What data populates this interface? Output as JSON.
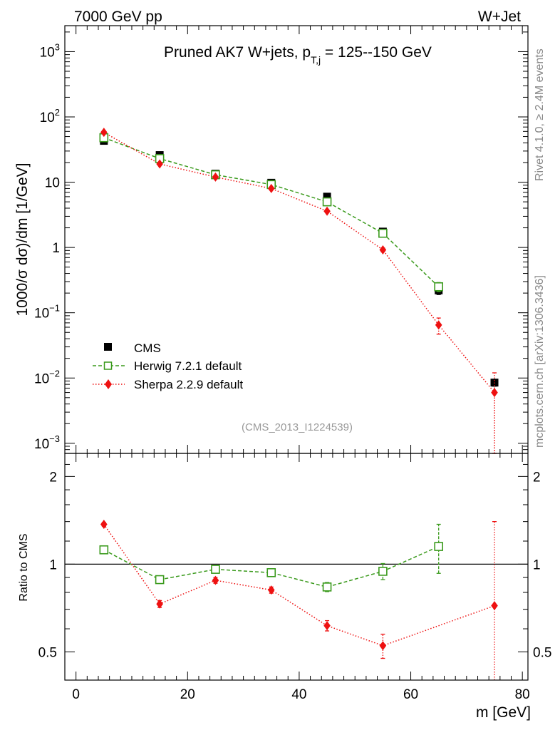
{
  "header": {
    "left": "7000 GeV pp",
    "right": "W+Jet"
  },
  "side_labels": {
    "rivet": "Rivet 4.1.0, ≥ 2.4M events",
    "mcplots": "mcplots.cern.ch [arXiv:1306.3436]"
  },
  "chart_data": [
    {
      "panel": "main",
      "type": "scatter",
      "title": {
        "main": "Pruned AK7 W+jets, p",
        "sub": "T,j",
        "tail": " = 125--150 GeV"
      },
      "watermark": "(CMS_2013_I1224539)",
      "xlabel": "m [GeV]",
      "ylabel": "1000/σ   dσ)/dm [1/GeV]",
      "yscale": "log",
      "xlim": [
        -2,
        81
      ],
      "ylim": [
        0.0007,
        2500
      ],
      "x_ticks": [
        0,
        20,
        40,
        60,
        80
      ],
      "y_ticks": [
        {
          "v": 1000,
          "base": "10",
          "exp": "3"
        },
        {
          "v": 100,
          "base": "10",
          "exp": "2"
        },
        {
          "v": 10,
          "base": "10",
          "exp": ""
        },
        {
          "v": 1,
          "base": "1",
          "exp": ""
        },
        {
          "v": 0.1,
          "base": "10",
          "exp": "−1"
        },
        {
          "v": 0.01,
          "base": "10",
          "exp": "−2"
        },
        {
          "v": 0.001,
          "base": "10",
          "exp": "−3"
        }
      ],
      "legend_position": "bottom-left",
      "series": [
        {
          "name": "CMS",
          "key": "cms",
          "color": "#000000",
          "marker": "filled-square",
          "x": [
            5,
            15,
            25,
            35,
            45,
            55,
            65,
            75
          ],
          "y": [
            43,
            26,
            13.5,
            9.8,
            6.0,
            1.75,
            0.22,
            0.0085
          ],
          "err": [
            3,
            1.5,
            0.8,
            0.6,
            0.4,
            0.15,
            0.03,
            0.001
          ]
        },
        {
          "name": "Herwig 7.2.1 default",
          "key": "herwig",
          "color": "#3a9a1c",
          "marker": "open-square",
          "line": "dashed",
          "x": [
            5,
            15,
            25,
            35,
            45,
            55,
            65
          ],
          "y": [
            48,
            23,
            13,
            9.2,
            5.0,
            1.65,
            0.25
          ],
          "err": [
            1.5,
            0.8,
            0.4,
            0.3,
            0.2,
            0.08,
            0.04
          ]
        },
        {
          "name": "Sherpa 2.2.9 default",
          "key": "sherpa",
          "color": "#ee1111",
          "marker": "filled-diamond",
          "line": "dotted",
          "x": [
            5,
            15,
            25,
            35,
            45,
            55,
            65,
            75
          ],
          "y": [
            58,
            19,
            12,
            8.0,
            3.6,
            0.92,
            0.065,
            0.006
          ],
          "err": [
            1.5,
            0.6,
            0.4,
            0.3,
            0.15,
            0.06,
            0.018,
            0.006
          ]
        }
      ]
    },
    {
      "panel": "ratio",
      "type": "scatter",
      "ylabel": "Ratio to CMS",
      "xlabel": "m [GeV]",
      "yscale": "log",
      "xlim": [
        -2,
        81
      ],
      "ylim": [
        0.4,
        2.4
      ],
      "y_ticks": [
        {
          "v": 2,
          "label": "2"
        },
        {
          "v": 1,
          "label": "1"
        },
        {
          "v": 0.5,
          "label": "0.5"
        }
      ],
      "reference_line": 1,
      "series": [
        {
          "name": "Herwig 7.2.1 default",
          "key": "herwig",
          "x": [
            5,
            15,
            25,
            35,
            45,
            55,
            65
          ],
          "y": [
            1.12,
            0.885,
            0.96,
            0.935,
            0.835,
            0.945,
            1.15
          ],
          "err": [
            0.02,
            0.02,
            0.02,
            0.02,
            0.03,
            0.06,
            0.22
          ]
        },
        {
          "name": "Sherpa 2.2.9 default",
          "key": "sherpa",
          "x": [
            5,
            15,
            25,
            35,
            45,
            55,
            75
          ],
          "y": [
            1.37,
            0.73,
            0.88,
            0.815,
            0.615,
            0.525,
            0.72
          ],
          "err": [
            0.02,
            0.02,
            0.02,
            0.02,
            0.025,
            0.05,
            0.68
          ]
        }
      ]
    }
  ]
}
